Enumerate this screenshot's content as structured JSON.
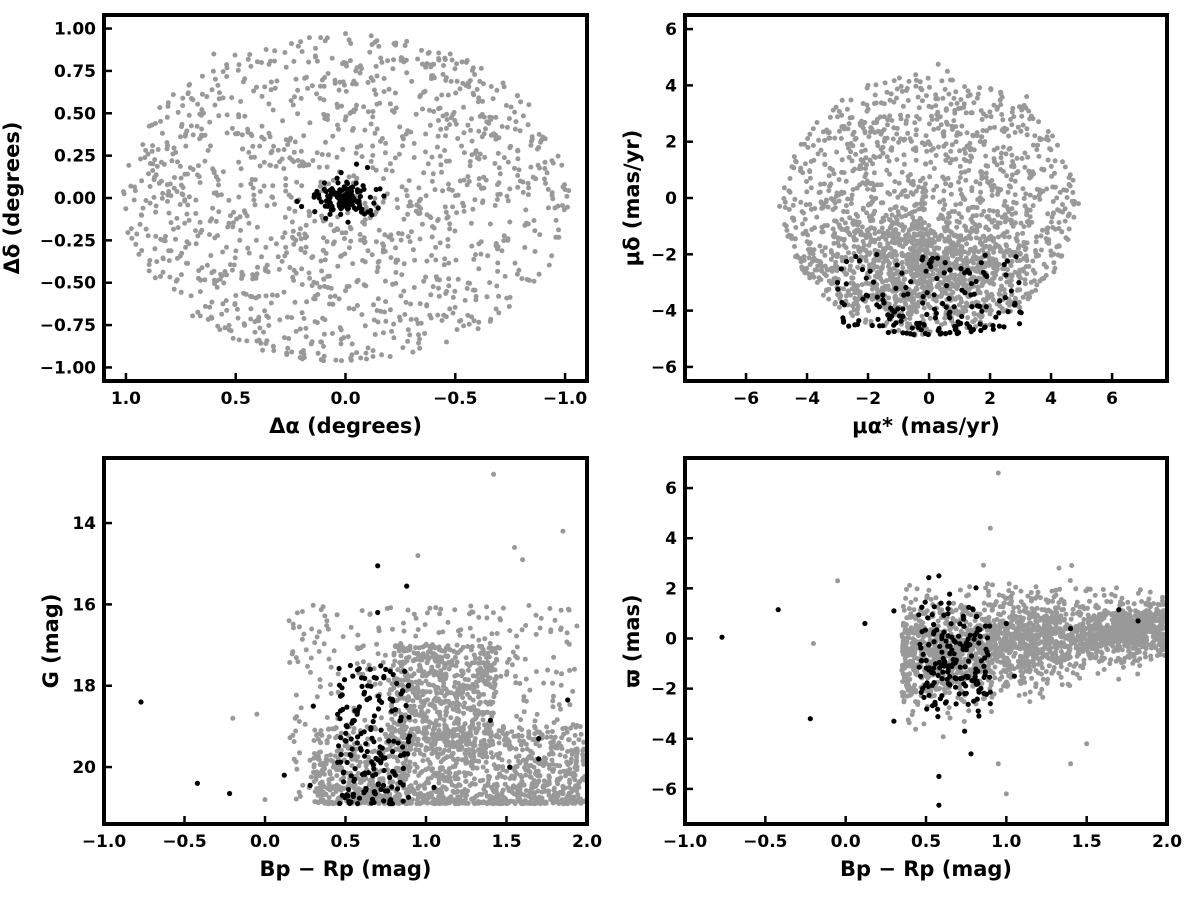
{
  "figure": {
    "gray_color": "#999999",
    "black_color": "#000000",
    "background": "#ffffff"
  },
  "chart_data": [
    {
      "type": "scatter",
      "xlabel": "Δα (degrees)",
      "ylabel": "Δδ (degrees)",
      "xlim": [
        1.1,
        -1.1
      ],
      "ylim": [
        -1.08,
        1.08
      ],
      "x_reversed": true,
      "xticks": [
        1.0,
        0.5,
        0.0,
        -0.5,
        -1.0
      ],
      "xtick_labels": [
        "1.0",
        "0.5",
        "0.0",
        "−0.5",
        "−1.0"
      ],
      "yticks": [
        -1.0,
        -0.75,
        -0.5,
        -0.25,
        0.0,
        0.25,
        0.5,
        0.75,
        1.0
      ],
      "ytick_labels": [
        "−1.00",
        "−0.75",
        "−0.50",
        "−0.25",
        "0.00",
        "0.25",
        "0.50",
        "0.75",
        "1.00"
      ],
      "grid": false,
      "series": [
        {
          "color": "#999999",
          "distribution": {
            "shape": "disk",
            "cx": 0.0,
            "cy": 0.0,
            "rx": 1.02,
            "ry": 0.97,
            "count": 1300
          },
          "points": [
            [
              0.0,
              0.97
            ],
            [
              -1.0,
              0.05
            ],
            [
              0.93,
              -0.1
            ],
            [
              0.1,
              -0.96
            ],
            [
              -0.55,
              0.8
            ],
            [
              0.6,
              0.85
            ]
          ]
        },
        {
          "color": "#000000",
          "distribution": {
            "shape": "core",
            "cx": 0.0,
            "cy": 0.0,
            "rx": 0.06,
            "ry": 0.05,
            "count": 120
          },
          "points": [
            [
              0.22,
              -0.02
            ],
            [
              0.2,
              -0.05
            ],
            [
              0.14,
              -0.08
            ],
            [
              -0.1,
              0.18
            ],
            [
              -0.05,
              0.2
            ],
            [
              0.02,
              0.15
            ],
            [
              -0.12,
              -0.1
            ],
            [
              0.09,
              -0.12
            ],
            [
              0.12,
              0.0
            ],
            [
              -0.14,
              0.05
            ]
          ]
        }
      ]
    },
    {
      "type": "scatter",
      "xlabel": "μα* (mas/yr)",
      "ylabel": "μδ (mas/yr)",
      "xlim": [
        -8.0,
        7.8
      ],
      "ylim": [
        -6.5,
        6.5
      ],
      "xticks": [
        -6,
        -4,
        -2,
        0,
        2,
        4,
        6
      ],
      "xtick_labels": [
        "−6",
        "−4",
        "−2",
        "0",
        "2",
        "4",
        "6"
      ],
      "yticks": [
        -6,
        -4,
        -2,
        0,
        2,
        4,
        6
      ],
      "ytick_labels": [
        "−6",
        "−4",
        "−2",
        "0",
        "2",
        "4",
        "6"
      ],
      "grid": false,
      "series": [
        {
          "color": "#999999",
          "distribution": {
            "shape": "bowl",
            "cx": 0.0,
            "cy": -0.2,
            "rx": 4.8,
            "ry_up": 4.6,
            "ry_down": 4.7,
            "count": 2200,
            "dense_center": [
              0.0,
              -2.5
            ]
          },
          "points": [
            [
              0.3,
              4.75
            ],
            [
              0.6,
              4.5
            ],
            [
              -4.9,
              -0.3
            ],
            [
              4.9,
              -0.2
            ],
            [
              -2.0,
              4.0
            ],
            [
              3.2,
              3.6
            ],
            [
              -0.5,
              -4.85
            ],
            [
              2.0,
              -4.5
            ]
          ]
        },
        {
          "color": "#000000",
          "distribution": {
            "shape": "band",
            "xmin": -3.0,
            "xmax": 3.1,
            "ymin": -4.9,
            "ymax": -2.0,
            "count": 160
          },
          "points": [
            [
              -0.2,
              -2.1
            ],
            [
              2.7,
              -3.3
            ],
            [
              2.8,
              -3.8
            ],
            [
              -3.0,
              -3.0
            ],
            [
              -0.5,
              -4.85
            ],
            [
              0.4,
              -4.8
            ]
          ]
        }
      ]
    },
    {
      "type": "scatter",
      "xlabel": "Bp − Rp (mag)",
      "ylabel": "G (mag)",
      "xlim": [
        -1.0,
        2.0
      ],
      "ylim": [
        12.4,
        21.4
      ],
      "y_reversed": true,
      "xticks": [
        -1.0,
        -0.5,
        0.0,
        0.5,
        1.0,
        1.5,
        2.0
      ],
      "xtick_labels": [
        "−1.0",
        "−0.5",
        "0.0",
        "0.5",
        "1.0",
        "1.5",
        "2.0"
      ],
      "yticks": [
        14,
        16,
        18,
        20
      ],
      "ytick_labels": [
        "14",
        "16",
        "18",
        "20"
      ],
      "grid": false,
      "series": [
        {
          "color": "#999999",
          "distribution": {
            "shape": "cmd",
            "count": 2100
          },
          "points": [
            [
              -0.2,
              18.8
            ],
            [
              0.0,
              20.8
            ],
            [
              -0.05,
              18.7
            ],
            [
              0.15,
              16.4
            ],
            [
              1.42,
              12.8
            ],
            [
              1.85,
              14.2
            ],
            [
              1.55,
              14.6
            ],
            [
              0.95,
              14.8
            ],
            [
              1.6,
              14.9
            ]
          ]
        },
        {
          "color": "#000000",
          "distribution": {
            "shape": "cmd_members",
            "count": 180
          },
          "points": [
            [
              -0.77,
              18.4
            ],
            [
              -0.42,
              20.4
            ],
            [
              -0.22,
              20.65
            ],
            [
              0.12,
              20.2
            ],
            [
              0.7,
              15.05
            ],
            [
              0.88,
              15.55
            ],
            [
              0.7,
              16.2
            ],
            [
              1.05,
              20.5
            ],
            [
              1.88,
              18.35
            ],
            [
              1.7,
              19.3
            ],
            [
              1.7,
              19.8
            ],
            [
              1.4,
              18.85
            ],
            [
              1.52,
              20.0
            ],
            [
              2.0,
              19.9
            ],
            [
              0.3,
              18.5
            ],
            [
              0.28,
              20.45
            ]
          ]
        }
      ]
    },
    {
      "type": "scatter",
      "xlabel": "Bp − Rp (mag)",
      "ylabel": "ϖ (mas)",
      "xlim": [
        -1.0,
        2.0
      ],
      "ylim": [
        -7.4,
        7.2
      ],
      "xticks": [
        -1.0,
        -0.5,
        0.0,
        0.5,
        1.0,
        1.5,
        2.0
      ],
      "xtick_labels": [
        "−1.0",
        "−0.5",
        "0.0",
        "0.5",
        "1.0",
        "1.5",
        "2.0"
      ],
      "yticks": [
        -6,
        -4,
        -2,
        0,
        2,
        4,
        6
      ],
      "ytick_labels": [
        "−6",
        "−4",
        "−2",
        "0",
        "2",
        "4",
        "6"
      ],
      "grid": false,
      "series": [
        {
          "color": "#999999",
          "distribution": {
            "shape": "plx",
            "count": 2100
          },
          "points": [
            [
              0.95,
              6.6
            ],
            [
              -0.2,
              -0.2
            ],
            [
              -0.05,
              2.3
            ],
            [
              0.9,
              4.4
            ],
            [
              1.0,
              -6.2
            ],
            [
              1.4,
              -5.0
            ],
            [
              1.5,
              -4.2
            ],
            [
              0.95,
              -5.0
            ]
          ]
        },
        {
          "color": "#000000",
          "distribution": {
            "shape": "plx_members",
            "count": 180
          },
          "points": [
            [
              -0.77,
              0.05
            ],
            [
              -0.42,
              1.15
            ],
            [
              -0.22,
              -3.2
            ],
            [
              0.12,
              0.6
            ],
            [
              0.3,
              1.1
            ],
            [
              0.58,
              -6.65
            ],
            [
              0.58,
              -5.5
            ],
            [
              0.78,
              -4.6
            ],
            [
              0.58,
              2.5
            ],
            [
              1.05,
              -1.5
            ],
            [
              1.7,
              1.15
            ],
            [
              1.4,
              0.4
            ],
            [
              1.82,
              0.7
            ],
            [
              2.0,
              0.6
            ],
            [
              0.3,
              -3.3
            ],
            [
              0.74,
              -3.7
            ],
            [
              1.0,
              0.6
            ],
            [
              0.9,
              -2.6
            ]
          ]
        }
      ]
    }
  ]
}
